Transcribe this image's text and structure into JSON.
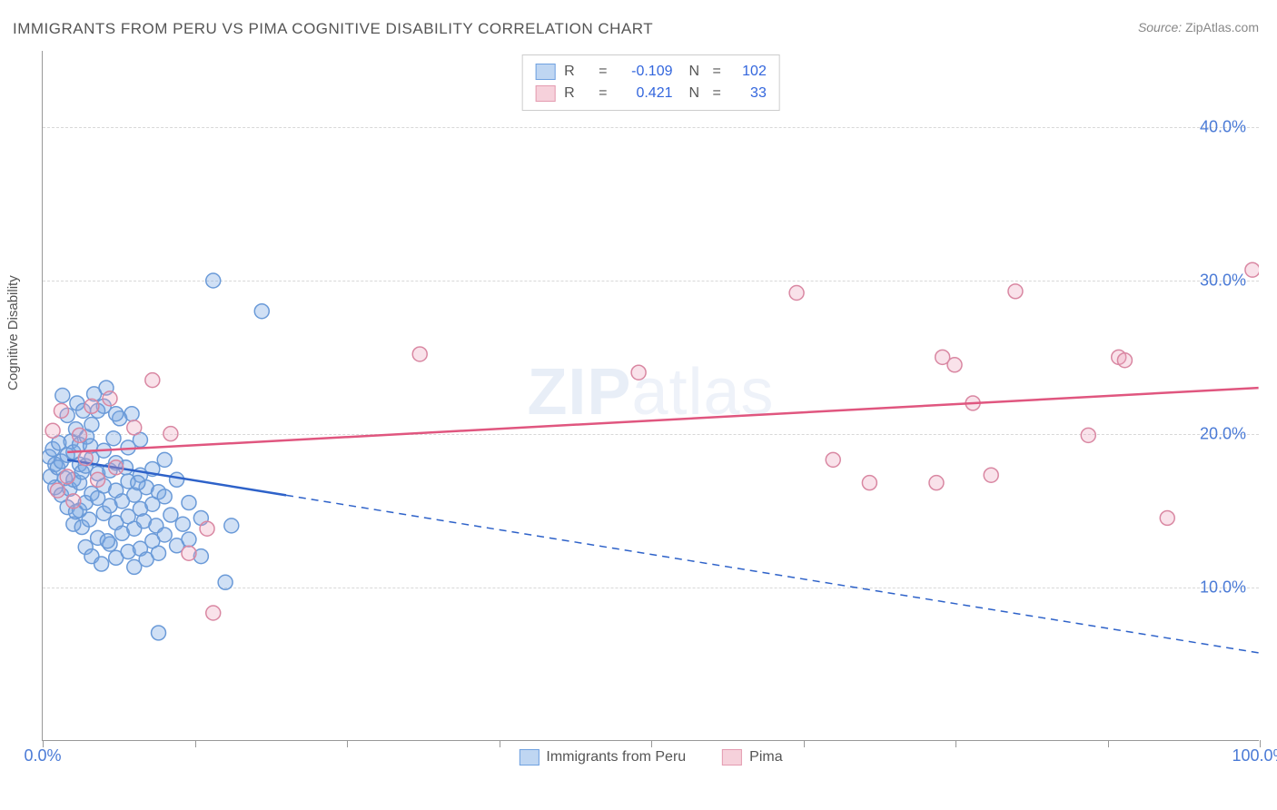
{
  "title": "IMMIGRANTS FROM PERU VS PIMA COGNITIVE DISABILITY CORRELATION CHART",
  "source": {
    "label": "Source:",
    "value": "ZipAtlas.com"
  },
  "watermark": {
    "part1": "ZIP",
    "part2": "atlas"
  },
  "y_axis_label": "Cognitive Disability",
  "chart": {
    "type": "scatter",
    "xlim": [
      0,
      100
    ],
    "ylim": [
      0,
      45
    ],
    "x_ticks": [
      0,
      12.5,
      25,
      37.5,
      50,
      62.5,
      75,
      87.5,
      100
    ],
    "x_tick_labels": {
      "0": "0.0%",
      "100": "100.0%"
    },
    "y_gridlines": [
      10,
      20,
      30,
      40
    ],
    "y_tick_labels": {
      "10": "10.0%",
      "20": "20.0%",
      "30": "30.0%",
      "40": "40.0%"
    },
    "background_color": "#ffffff",
    "grid_color": "#d8d8d8",
    "axis_color": "#999999",
    "tick_label_color": "#4a7ad6",
    "axis_label_color": "#555555"
  },
  "legend_top": {
    "rows": [
      {
        "swatch_fill": "#bfd6f2",
        "swatch_border": "#6fa1e0",
        "r": "-0.109",
        "n": "102"
      },
      {
        "swatch_fill": "#f6d1db",
        "swatch_border": "#e49bb0",
        "r": "0.421",
        "n": "33"
      }
    ],
    "r_label": "R",
    "eq": "=",
    "n_label": "N"
  },
  "legend_bottom": {
    "items": [
      {
        "swatch_fill": "#bfd6f2",
        "swatch_border": "#6fa1e0",
        "label": "Immigrants from Peru"
      },
      {
        "swatch_fill": "#f6d1db",
        "swatch_border": "#e49bb0",
        "label": "Pima"
      }
    ]
  },
  "series": [
    {
      "name": "peru",
      "marker_fill": "rgba(120,165,225,0.35)",
      "marker_stroke": "#6a9ad8",
      "marker_radius": 8,
      "trend": {
        "color": "#2e62c9",
        "width": 2.5,
        "x1": 2,
        "y1": 18.3,
        "x2": 100,
        "y2": 5.7,
        "solid_until_x": 20
      },
      "points": [
        [
          0.5,
          18.5
        ],
        [
          0.6,
          17.2
        ],
        [
          0.8,
          19.0
        ],
        [
          1.0,
          16.5
        ],
        [
          1.0,
          18.0
        ],
        [
          1.2,
          17.8
        ],
        [
          1.3,
          19.4
        ],
        [
          1.5,
          16.0
        ],
        [
          1.5,
          18.2
        ],
        [
          1.6,
          22.5
        ],
        [
          1.8,
          17.1
        ],
        [
          2.0,
          15.2
        ],
        [
          2.0,
          18.6
        ],
        [
          2.0,
          21.2
        ],
        [
          2.2,
          16.4
        ],
        [
          2.3,
          19.5
        ],
        [
          2.5,
          14.1
        ],
        [
          2.5,
          17.0
        ],
        [
          2.5,
          18.8
        ],
        [
          2.7,
          20.3
        ],
        [
          2.8,
          22.0
        ],
        [
          3.0,
          15.0
        ],
        [
          3.0,
          16.8
        ],
        [
          3.0,
          18.0
        ],
        [
          3.0,
          19.3
        ],
        [
          3.2,
          13.9
        ],
        [
          3.2,
          17.5
        ],
        [
          3.3,
          21.5
        ],
        [
          3.5,
          12.6
        ],
        [
          3.5,
          15.5
        ],
        [
          3.5,
          17.9
        ],
        [
          3.6,
          19.8
        ],
        [
          3.8,
          14.4
        ],
        [
          4.0,
          12.0
        ],
        [
          4.0,
          16.1
        ],
        [
          4.0,
          18.4
        ],
        [
          4.0,
          20.6
        ],
        [
          4.2,
          22.6
        ],
        [
          4.5,
          13.2
        ],
        [
          4.5,
          15.8
        ],
        [
          4.5,
          17.4
        ],
        [
          4.8,
          11.5
        ],
        [
          5.0,
          14.8
        ],
        [
          5.0,
          16.6
        ],
        [
          5.0,
          18.9
        ],
        [
          5.0,
          21.8
        ],
        [
          5.2,
          23.0
        ],
        [
          5.5,
          12.8
        ],
        [
          5.5,
          15.3
        ],
        [
          5.5,
          17.6
        ],
        [
          5.8,
          19.7
        ],
        [
          6.0,
          11.9
        ],
        [
          6.0,
          14.2
        ],
        [
          6.0,
          16.3
        ],
        [
          6.0,
          18.1
        ],
        [
          6.3,
          21.0
        ],
        [
          6.5,
          13.5
        ],
        [
          6.5,
          15.6
        ],
        [
          6.8,
          17.8
        ],
        [
          7.0,
          12.3
        ],
        [
          7.0,
          14.6
        ],
        [
          7.0,
          16.9
        ],
        [
          7.0,
          19.1
        ],
        [
          7.3,
          21.3
        ],
        [
          7.5,
          11.3
        ],
        [
          7.5,
          13.8
        ],
        [
          7.5,
          16.0
        ],
        [
          8.0,
          12.5
        ],
        [
          8.0,
          15.1
        ],
        [
          8.0,
          17.3
        ],
        [
          8.0,
          19.6
        ],
        [
          8.3,
          14.3
        ],
        [
          8.5,
          11.8
        ],
        [
          8.5,
          16.5
        ],
        [
          9.0,
          13.0
        ],
        [
          9.0,
          15.4
        ],
        [
          9.0,
          17.7
        ],
        [
          9.3,
          14.0
        ],
        [
          9.5,
          12.2
        ],
        [
          9.5,
          16.2
        ],
        [
          10.0,
          13.4
        ],
        [
          10.0,
          15.9
        ],
        [
          10.0,
          18.3
        ],
        [
          10.5,
          14.7
        ],
        [
          11.0,
          12.7
        ],
        [
          11.0,
          17.0
        ],
        [
          11.5,
          14.1
        ],
        [
          12.0,
          15.5
        ],
        [
          12.0,
          13.1
        ],
        [
          13.0,
          14.5
        ],
        [
          14.0,
          30.0
        ],
        [
          15.0,
          10.3
        ],
        [
          18.0,
          28.0
        ],
        [
          9.5,
          7.0
        ],
        [
          13.0,
          12.0
        ],
        [
          4.5,
          21.5
        ],
        [
          15.5,
          14.0
        ],
        [
          6.0,
          21.3
        ],
        [
          2.7,
          14.9
        ],
        [
          3.9,
          19.2
        ],
        [
          5.3,
          13.0
        ],
        [
          7.8,
          16.8
        ]
      ]
    },
    {
      "name": "pima",
      "marker_fill": "rgba(235,160,185,0.3)",
      "marker_stroke": "#d987a2",
      "marker_radius": 8,
      "trend": {
        "color": "#e0567f",
        "width": 2.5,
        "x1": 2,
        "y1": 18.8,
        "x2": 100,
        "y2": 23.0,
        "solid_until_x": 100
      },
      "points": [
        [
          0.8,
          20.2
        ],
        [
          1.2,
          16.3
        ],
        [
          1.5,
          21.5
        ],
        [
          2.0,
          17.2
        ],
        [
          2.5,
          15.6
        ],
        [
          3.0,
          19.9
        ],
        [
          3.5,
          18.4
        ],
        [
          4.0,
          21.8
        ],
        [
          4.5,
          17.0
        ],
        [
          5.5,
          22.3
        ],
        [
          6.0,
          17.8
        ],
        [
          7.5,
          20.4
        ],
        [
          9.0,
          23.5
        ],
        [
          10.5,
          20.0
        ],
        [
          12.0,
          12.2
        ],
        [
          14.0,
          8.3
        ],
        [
          13.5,
          13.8
        ],
        [
          31.0,
          25.2
        ],
        [
          49.0,
          24.0
        ],
        [
          62.0,
          29.2
        ],
        [
          65.0,
          18.3
        ],
        [
          68.0,
          16.8
        ],
        [
          73.5,
          16.8
        ],
        [
          74.0,
          25.0
        ],
        [
          75.0,
          24.5
        ],
        [
          76.5,
          22.0
        ],
        [
          78.0,
          17.3
        ],
        [
          80.0,
          29.3
        ],
        [
          86.0,
          19.9
        ],
        [
          88.5,
          25.0
        ],
        [
          89.0,
          24.8
        ],
        [
          92.5,
          14.5
        ],
        [
          99.5,
          30.7
        ]
      ]
    }
  ]
}
